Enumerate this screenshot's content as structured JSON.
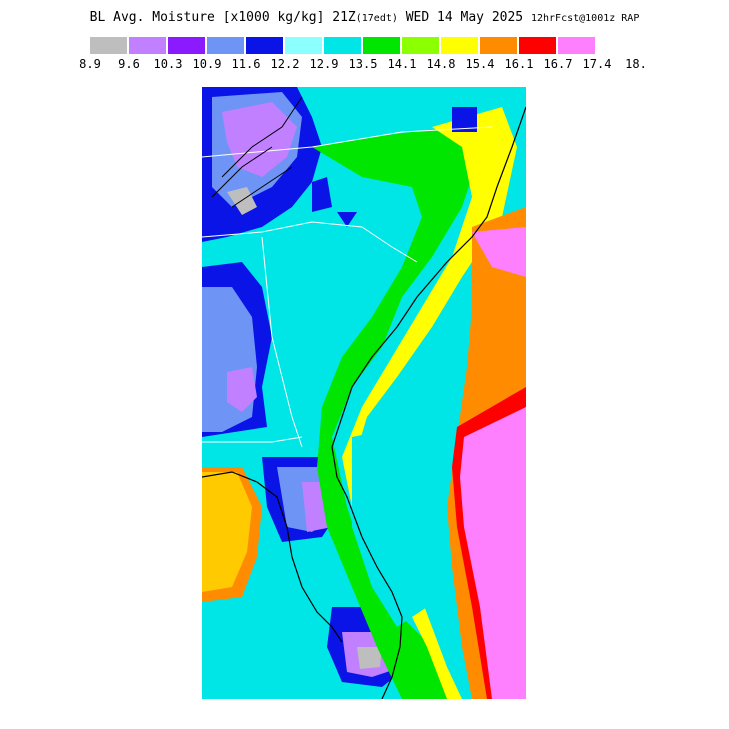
{
  "title": {
    "main": "BL Avg. Moisture [x1000 kg/kg] 21Z",
    "local_time": "(17edt)",
    "date": "WED 14 May 2025",
    "run": "12hrFcst@1001z RAP"
  },
  "legend": {
    "ticks": [
      "8.9",
      "9.6",
      "10.3",
      "10.9",
      "11.6",
      "12.2",
      "12.9",
      "13.5",
      "14.1",
      "14.8",
      "15.4",
      "16.1",
      "16.7",
      "17.4",
      "18."
    ],
    "colors": [
      "#bebebe",
      "#c080ff",
      "#8c1aff",
      "#6e95f5",
      "#0a14e6",
      "#8cffff",
      "#00e6e6",
      "#00e600",
      "#8cff00",
      "#ffff00",
      "#ff8c00",
      "#ff0000",
      "#ff80ff"
    ]
  },
  "map": {
    "description_colors": {
      "ocean_high": "#ff80ff",
      "coast_border": "#000000",
      "state_lines": "#ffffff"
    }
  }
}
